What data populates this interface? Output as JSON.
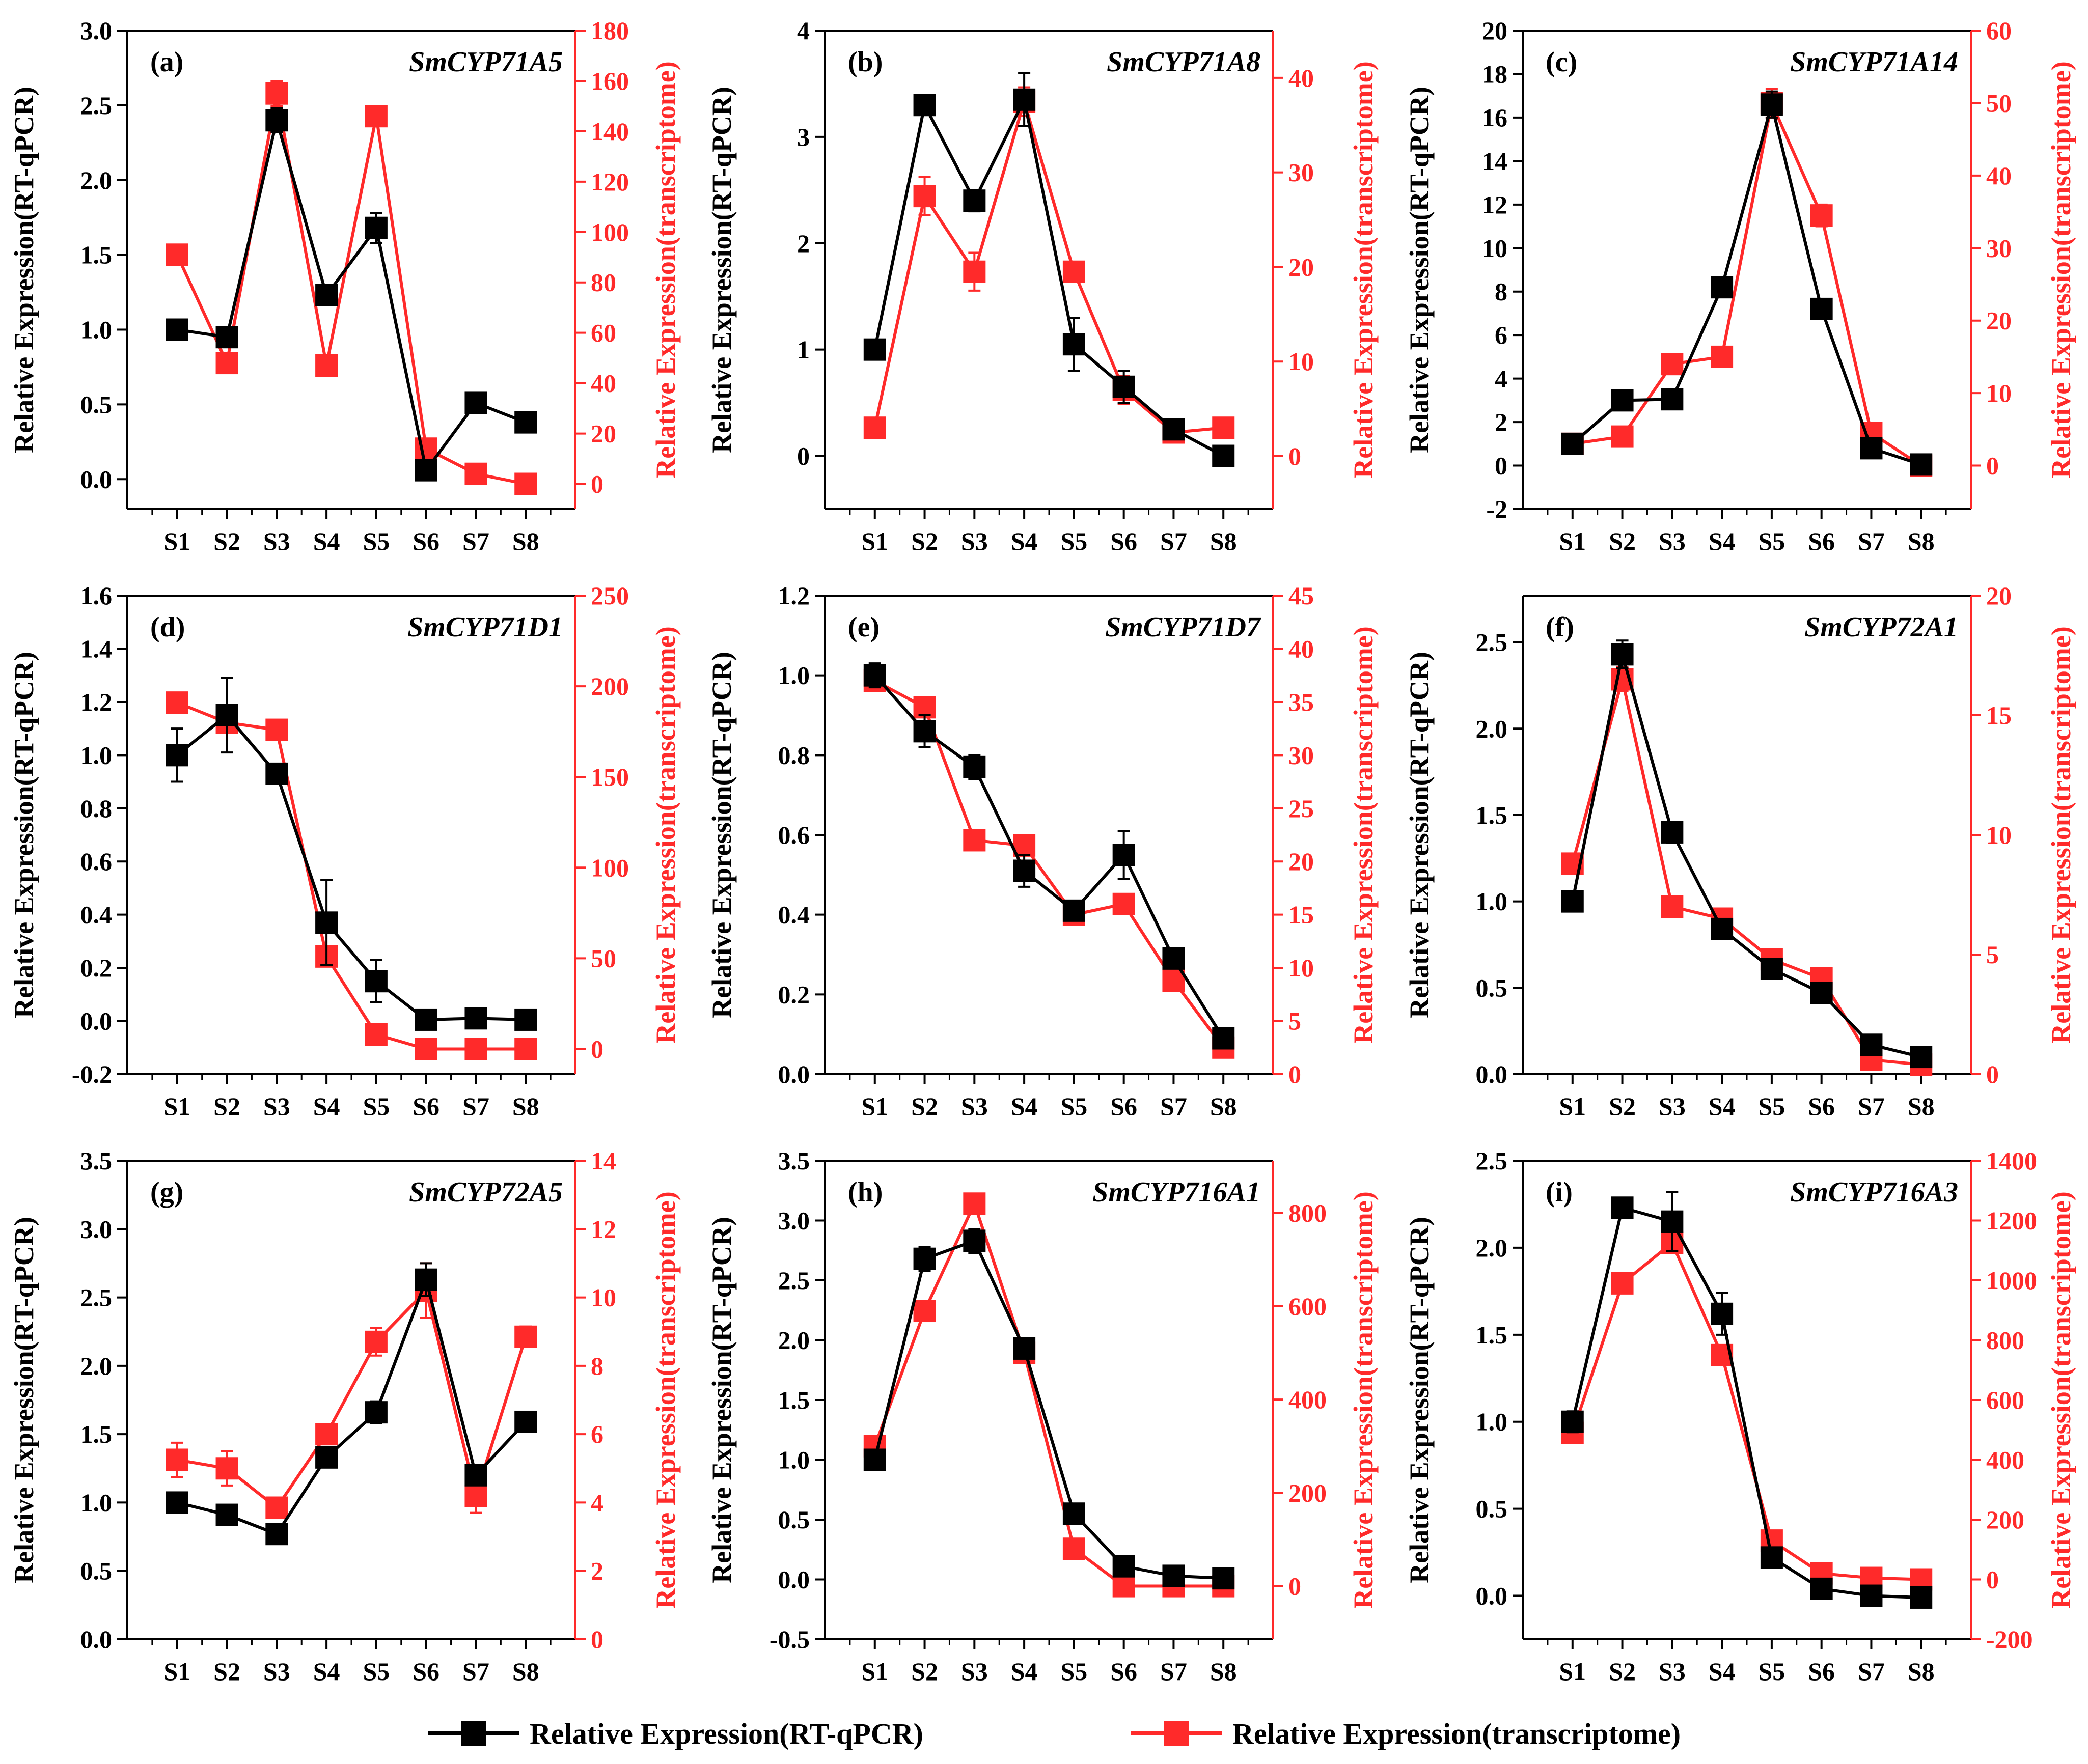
{
  "colors": {
    "qpcr": "#000000",
    "transcriptome": "#ff2a2a"
  },
  "legend": {
    "qpcr_label": "Relative Expression(RT-qPCR)",
    "transcriptome_label": "Relative Expression(transcriptome)"
  },
  "chart_data": [
    {
      "type": "line",
      "tag": "(a)",
      "title": "SmCYP71A5",
      "categories": [
        "S1",
        "S2",
        "S3",
        "S4",
        "S5",
        "S6",
        "S7",
        "S8"
      ],
      "ylabel": "Relative Expression(RT-qPCR)",
      "y2label": "Relative Expression(transcriptome)",
      "ylim": [
        -0.2,
        3.0
      ],
      "yticks": [
        0.0,
        0.5,
        1.0,
        1.5,
        2.0,
        2.5,
        3.0
      ],
      "yticks_text": [
        "0.0",
        "0.5",
        "1.0",
        "1.5",
        "2.0",
        "2.5",
        "3.0"
      ],
      "y2lim": [
        -10,
        180
      ],
      "y2ticks": [
        0,
        20,
        40,
        60,
        80,
        100,
        120,
        140,
        160,
        180
      ],
      "y2ticks_text": [
        "0",
        "20",
        "40",
        "60",
        "80",
        "100",
        "120",
        "140",
        "160",
        "180"
      ],
      "series": [
        {
          "name": "Relative Expression(RT-qPCR)",
          "axis": "left",
          "values": [
            1.0,
            0.95,
            2.4,
            1.23,
            1.68,
            0.06,
            0.51,
            0.38
          ],
          "errors": [
            0.04,
            0.03,
            0.08,
            0.06,
            0.1,
            0.02,
            0.02,
            0.02
          ]
        },
        {
          "name": "Relative Expression(transcriptome)",
          "axis": "right",
          "values": [
            91,
            48,
            155,
            47,
            146,
            14,
            4,
            0
          ],
          "errors": [
            4,
            2,
            5,
            2,
            4,
            2,
            1,
            1
          ]
        }
      ]
    },
    {
      "type": "line",
      "tag": "(b)",
      "title": "SmCYP71A8",
      "categories": [
        "S1",
        "S2",
        "S3",
        "S4",
        "S5",
        "S6",
        "S7",
        "S8"
      ],
      "ylabel": "Relative Expression(RT-qPCR)",
      "y2label": "Relative Expression(transcriptome)",
      "ylim": [
        -0.5,
        4.0
      ],
      "yticks": [
        0,
        1,
        2,
        3,
        4
      ],
      "yticks_text": [
        "0",
        "1",
        "2",
        "3",
        "4"
      ],
      "y2lim": [
        -5.6,
        45
      ],
      "y2ticks": [
        0,
        10,
        20,
        30,
        40
      ],
      "y2ticks_text": [
        "0",
        "10",
        "20",
        "30",
        "40"
      ],
      "series": [
        {
          "name": "Relative Expression(RT-qPCR)",
          "axis": "left",
          "values": [
            1.0,
            3.3,
            2.4,
            3.35,
            1.05,
            0.65,
            0.25,
            0.0
          ],
          "errors": [
            0.08,
            0.04,
            0.1,
            0.25,
            0.25,
            0.15,
            0.03,
            0.02
          ]
        },
        {
          "name": "Relative Expression(transcriptome)",
          "axis": "right",
          "values": [
            3,
            27.5,
            19.5,
            37.5,
            19.5,
            7,
            2.5,
            3
          ],
          "errors": [
            0.5,
            2,
            2,
            1.5,
            0.8,
            1.5,
            0.5,
            0.5
          ]
        }
      ]
    },
    {
      "type": "line",
      "tag": "(c)",
      "title": "SmCYP71A14",
      "categories": [
        "S1",
        "S2",
        "S3",
        "S4",
        "S5",
        "S6",
        "S7",
        "S8"
      ],
      "ylabel": "Relative Expression(RT-qPCR)",
      "y2label": "Relative Expression(transcriptome)",
      "ylim": [
        -2,
        20
      ],
      "yticks": [
        -2,
        0,
        2,
        4,
        6,
        8,
        10,
        12,
        14,
        16,
        18,
        20
      ],
      "yticks_text": [
        "-2",
        "0",
        "2",
        "4",
        "6",
        "8",
        "10",
        "12",
        "14",
        "16",
        "18",
        "20"
      ],
      "y2lim": [
        -6,
        60
      ],
      "y2ticks": [
        0,
        10,
        20,
        30,
        40,
        50,
        60
      ],
      "y2ticks_text": [
        "0",
        "10",
        "20",
        "30",
        "40",
        "50",
        "60"
      ],
      "series": [
        {
          "name": "Relative Expression(RT-qPCR)",
          "axis": "left",
          "values": [
            1.0,
            3.0,
            3.05,
            8.2,
            16.6,
            7.2,
            0.8,
            0.05
          ],
          "errors": [
            0.1,
            0.15,
            0.15,
            0.4,
            0.6,
            0.4,
            0.1,
            0.05
          ]
        },
        {
          "name": "Relative Expression(transcriptome)",
          "axis": "right",
          "values": [
            3,
            4,
            14,
            15,
            50,
            34.5,
            4.5,
            0
          ],
          "errors": [
            0.5,
            0.5,
            0.8,
            0.8,
            2,
            1.5,
            0.5,
            0.3
          ]
        }
      ]
    },
    {
      "type": "line",
      "tag": "(d)",
      "title": "SmCYP71D1",
      "categories": [
        "S1",
        "S2",
        "S3",
        "S4",
        "S5",
        "S6",
        "S7",
        "S8"
      ],
      "ylabel": "Relative Expression(RT-qPCR)",
      "y2label": "Relative Expression(transcriptome)",
      "ylim": [
        -0.2,
        1.6
      ],
      "yticks": [
        -0.2,
        0.0,
        0.2,
        0.4,
        0.6,
        0.8,
        1.0,
        1.2,
        1.4,
        1.6
      ],
      "yticks_text": [
        "-0.2",
        "0.0",
        "0.2",
        "0.4",
        "0.6",
        "0.8",
        "1.0",
        "1.2",
        "1.4",
        "1.6"
      ],
      "y2lim": [
        -13.9,
        250
      ],
      "y2ticks": [
        0,
        50,
        100,
        150,
        200,
        250
      ],
      "y2ticks_text": [
        "0",
        "50",
        "100",
        "150",
        "200",
        "250"
      ],
      "series": [
        {
          "name": "Relative Expression(RT-qPCR)",
          "axis": "left",
          "values": [
            1.0,
            1.15,
            0.93,
            0.37,
            0.15,
            0.005,
            0.01,
            0.005
          ],
          "errors": [
            0.1,
            0.14,
            0.03,
            0.16,
            0.08,
            0.01,
            0.01,
            0.01
          ]
        },
        {
          "name": "Relative Expression(transcriptome)",
          "axis": "right",
          "values": [
            191,
            180,
            176,
            51,
            8,
            0,
            0,
            0
          ],
          "errors": [
            3,
            3,
            3,
            4,
            2,
            1,
            1,
            1
          ]
        }
      ]
    },
    {
      "type": "line",
      "tag": "(e)",
      "title": "SmCYP71D7",
      "categories": [
        "S1",
        "S2",
        "S3",
        "S4",
        "S5",
        "S6",
        "S7",
        "S8"
      ],
      "ylabel": "Relative Expression(RT-qPCR)",
      "y2label": "Relative Expression(transcriptome)",
      "ylim": [
        0.0,
        1.2
      ],
      "yticks": [
        0.0,
        0.2,
        0.4,
        0.6,
        0.8,
        1.0,
        1.2
      ],
      "yticks_text": [
        "0.0",
        "0.2",
        "0.4",
        "0.6",
        "0.8",
        "1.0",
        "1.2"
      ],
      "y2lim": [
        0,
        45
      ],
      "y2ticks": [
        0,
        5,
        10,
        15,
        20,
        25,
        30,
        35,
        40,
        45
      ],
      "y2ticks_text": [
        "0",
        "5",
        "10",
        "15",
        "20",
        "25",
        "30",
        "35",
        "40",
        "45"
      ],
      "series": [
        {
          "name": "Relative Expression(RT-qPCR)",
          "axis": "left",
          "values": [
            1.0,
            0.86,
            0.77,
            0.51,
            0.41,
            0.55,
            0.29,
            0.09
          ],
          "errors": [
            0.03,
            0.04,
            0.03,
            0.04,
            0.02,
            0.06,
            0.02,
            0.01
          ]
        },
        {
          "name": "Relative Expression(transcriptome)",
          "axis": "right",
          "values": [
            37,
            34.5,
            22,
            21.5,
            15,
            16,
            8.8,
            2.5
          ],
          "errors": [
            0.8,
            0.8,
            0.6,
            0.6,
            0.5,
            0.5,
            0.5,
            0.4
          ]
        }
      ]
    },
    {
      "type": "line",
      "tag": "(f)",
      "title": "SmCYP72A1",
      "categories": [
        "S1",
        "S2",
        "S3",
        "S4",
        "S5",
        "S6",
        "S7",
        "S8"
      ],
      "ylabel": "Relative Expression(RT-qPCR)",
      "y2label": "Relative Expression(transcriptome)",
      "ylim": [
        0.0,
        2.77
      ],
      "yticks": [
        0.0,
        0.5,
        1.0,
        1.5,
        2.0,
        2.5
      ],
      "yticks_text": [
        "0.0",
        "0.5",
        "1.0",
        "1.5",
        "2.0",
        "2.5"
      ],
      "y2lim": [
        0,
        20
      ],
      "y2ticks": [
        0,
        5,
        10,
        15,
        20
      ],
      "y2ticks_text": [
        "0",
        "5",
        "10",
        "15",
        "20"
      ],
      "series": [
        {
          "name": "Relative Expression(RT-qPCR)",
          "axis": "left",
          "values": [
            1.0,
            2.43,
            1.4,
            0.84,
            0.61,
            0.47,
            0.17,
            0.1
          ],
          "errors": [
            0.03,
            0.08,
            0.06,
            0.03,
            0.03,
            0.03,
            0.02,
            0.01
          ]
        },
        {
          "name": "Relative Expression(transcriptome)",
          "axis": "right",
          "values": [
            8.8,
            16.5,
            7.0,
            6.5,
            4.8,
            4.0,
            0.6,
            0.4
          ],
          "errors": [
            0.3,
            0.5,
            0.3,
            0.3,
            0.2,
            0.2,
            0.1,
            0.1
          ]
        }
      ]
    },
    {
      "type": "line",
      "tag": "(g)",
      "title": "SmCYP72A5",
      "categories": [
        "S1",
        "S2",
        "S3",
        "S4",
        "S5",
        "S6",
        "S7",
        "S8"
      ],
      "ylabel": "Relative Expression(RT-qPCR)",
      "y2label": "Relative Expression(transcriptome)",
      "ylim": [
        0.0,
        3.5
      ],
      "yticks": [
        0.0,
        0.5,
        1.0,
        1.5,
        2.0,
        2.5,
        3.0,
        3.5
      ],
      "yticks_text": [
        "0.0",
        "0.5",
        "1.0",
        "1.5",
        "2.0",
        "2.5",
        "3.0",
        "3.5"
      ],
      "y2lim": [
        0,
        14
      ],
      "y2ticks": [
        0,
        2,
        4,
        6,
        8,
        10,
        12,
        14
      ],
      "y2ticks_text": [
        "0",
        "2",
        "4",
        "6",
        "8",
        "10",
        "12",
        "14"
      ],
      "series": [
        {
          "name": "Relative Expression(RT-qPCR)",
          "axis": "left",
          "values": [
            1.0,
            0.91,
            0.77,
            1.33,
            1.66,
            2.63,
            1.2,
            1.59
          ],
          "errors": [
            0.03,
            0.03,
            0.03,
            0.04,
            0.08,
            0.12,
            0.04,
            0.04
          ]
        },
        {
          "name": "Relative Expression(transcriptome)",
          "axis": "right",
          "values": [
            5.25,
            5.0,
            3.85,
            6.0,
            8.7,
            10.2,
            4.2,
            8.85
          ],
          "errors": [
            0.5,
            0.5,
            0.2,
            0.2,
            0.4,
            0.8,
            0.5,
            0.3
          ]
        }
      ]
    },
    {
      "type": "line",
      "tag": "(h)",
      "title": "SmCYP716A1",
      "categories": [
        "S1",
        "S2",
        "S3",
        "S4",
        "S5",
        "S6",
        "S7",
        "S8"
      ],
      "ylabel": "Relative Expression(RT-qPCR)",
      "y2label": "Relative Expression(transcriptome)",
      "ylim": [
        -0.5,
        3.5
      ],
      "yticks": [
        -0.5,
        0.0,
        0.5,
        1.0,
        1.5,
        2.0,
        2.5,
        3.0,
        3.5
      ],
      "yticks_text": [
        "-0.5",
        "0.0",
        "0.5",
        "1.0",
        "1.5",
        "2.0",
        "2.5",
        "3.0",
        "3.5"
      ],
      "y2lim": [
        -114,
        912
      ],
      "y2ticks": [
        0,
        200,
        400,
        600,
        800
      ],
      "y2ticks_text": [
        "0",
        "200",
        "400",
        "600",
        "800"
      ],
      "series": [
        {
          "name": "Relative Expression(RT-qPCR)",
          "axis": "left",
          "values": [
            1.0,
            2.68,
            2.83,
            1.93,
            0.55,
            0.11,
            0.03,
            0.01
          ],
          "errors": [
            0.03,
            0.1,
            0.1,
            0.05,
            0.04,
            0.02,
            0.01,
            0.01
          ]
        },
        {
          "name": "Relative Expression(transcriptome)",
          "axis": "right",
          "values": [
            300,
            590,
            820,
            500,
            80,
            0,
            0,
            0
          ],
          "errors": [
            10,
            15,
            15,
            12,
            5,
            3,
            3,
            3
          ]
        }
      ]
    },
    {
      "type": "line",
      "tag": "(i)",
      "title": "SmCYP716A3",
      "categories": [
        "S1",
        "S2",
        "S3",
        "S4",
        "S5",
        "S6",
        "S7",
        "S8"
      ],
      "ylabel": "Relative Expression(RT-qPCR)",
      "y2label": "Relative Expression(transcriptome)",
      "ylim": [
        -0.25,
        2.5
      ],
      "yticks": [
        0.0,
        0.5,
        1.0,
        1.5,
        2.0,
        2.5
      ],
      "yticks_text": [
        "0.0",
        "0.5",
        "1.0",
        "1.5",
        "2.0",
        "2.5"
      ],
      "y2lim": [
        -200,
        1400
      ],
      "y2ticks": [
        -200,
        0,
        200,
        400,
        600,
        800,
        1000,
        1200,
        1400
      ],
      "y2ticks_text": [
        "-200",
        "0",
        "200",
        "400",
        "600",
        "800",
        "1000",
        "1200",
        "1400"
      ],
      "series": [
        {
          "name": "Relative Expression(RT-qPCR)",
          "axis": "left",
          "values": [
            1.0,
            2.23,
            2.15,
            1.62,
            0.22,
            0.04,
            0.0,
            -0.01
          ],
          "errors": [
            0.06,
            0.05,
            0.17,
            0.12,
            0.03,
            0.02,
            0.01,
            0.01
          ]
        },
        {
          "name": "Relative Expression(transcriptome)",
          "axis": "right",
          "values": [
            490,
            990,
            1125,
            750,
            130,
            20,
            5,
            0
          ],
          "errors": [
            15,
            20,
            20,
            15,
            8,
            5,
            5,
            5
          ]
        }
      ]
    }
  ]
}
